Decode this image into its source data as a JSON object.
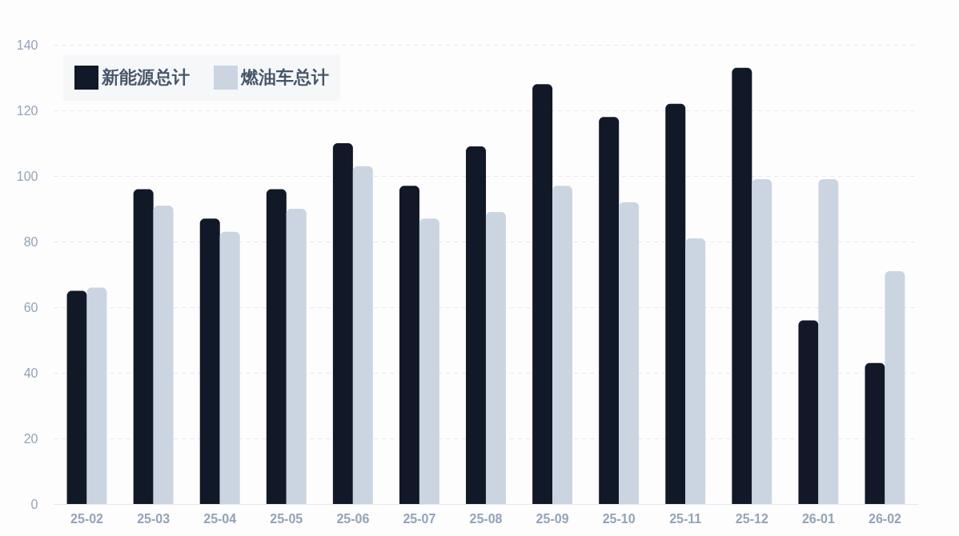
{
  "chart_data": {
    "type": "bar",
    "categories": [
      "25-02",
      "25-03",
      "25-04",
      "25-05",
      "25-06",
      "25-07",
      "25-08",
      "25-09",
      "25-10",
      "25-11",
      "25-12",
      "26-01",
      "26-02"
    ],
    "series": [
      {
        "name": "新能源总计",
        "color": "#111827",
        "values": [
          65,
          96,
          87,
          96,
          110,
          97,
          109,
          128,
          118,
          122,
          133,
          56,
          43
        ]
      },
      {
        "name": "燃油车总计",
        "color": "#cbd5e1",
        "values": [
          66,
          91,
          83,
          90,
          103,
          87,
          89,
          97,
          92,
          81,
          99,
          99,
          71
        ]
      }
    ],
    "ylim": [
      0,
      140
    ],
    "yticks": [
      0,
      20,
      40,
      60,
      80,
      100,
      120,
      140
    ],
    "grid": "y",
    "legend": "top left"
  }
}
